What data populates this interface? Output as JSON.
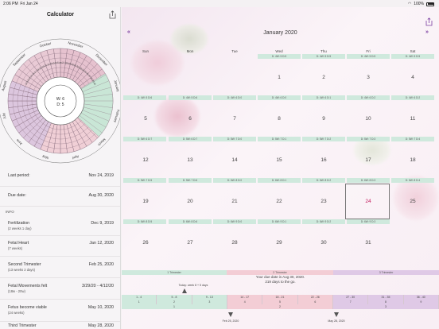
{
  "status": {
    "time": "2:06 PM",
    "date": "Fri Jan 24",
    "battery": "100%"
  },
  "left_title": "Calculator",
  "wheel": {
    "center": {
      "line1": "W: 6",
      "line2": "D: 5"
    },
    "months": [
      "September",
      "October",
      "November",
      "December",
      "January",
      "February",
      "March",
      "April",
      "May",
      "June",
      "July",
      "August"
    ],
    "ring_numbers": [
      "12",
      "13",
      "14",
      "15",
      "16",
      "17",
      "18",
      "19",
      "20",
      "21",
      "22",
      "23",
      "24",
      "25",
      "26",
      "27",
      "28",
      "29",
      "30",
      "31",
      "32",
      "33",
      "34",
      "35",
      "36",
      "37",
      "38",
      "39",
      "40"
    ]
  },
  "summary": [
    {
      "key": "Last period:",
      "value": "Nov 24, 2019"
    },
    {
      "key": "Due date:",
      "value": "Aug 30, 2020"
    }
  ],
  "info_header": "INFO",
  "info": [
    {
      "key": "Fertilization",
      "sub": "(2 weeks 1 day)",
      "value": "Dec 9, 2019"
    },
    {
      "key": "Fetal Heart",
      "sub": "(7 weeks)",
      "value": "Jan 12, 2020"
    },
    {
      "key": "Second Trimester",
      "sub": "(13 weeks 2 days)",
      "value": "Feb 25, 2020"
    },
    {
      "key": "Fetal Movements felt",
      "sub": "(18w - 20w)",
      "value": "3/29/20 - 4/12/20"
    },
    {
      "key": "Fetus become viable",
      "sub": "(24 weeks)",
      "value": "May 10, 2020"
    },
    {
      "key": "Third Trimester",
      "sub": "",
      "value": "May 28, 2020"
    }
  ],
  "calendar": {
    "title": "January 2020",
    "prev_icon": "double-chevron-left-icon",
    "next_icon": "double-chevron-right-icon",
    "days": [
      "Sun",
      "Mon",
      "Tue",
      "Wed",
      "Thu",
      "Fri",
      "Sat"
    ],
    "weeks": [
      [
        "",
        "",
        "",
        "1",
        "2",
        "3",
        "4"
      ],
      [
        "5",
        "6",
        "7",
        "8",
        "9",
        "10",
        "11"
      ],
      [
        "12",
        "13",
        "14",
        "15",
        "16",
        "17",
        "18"
      ],
      [
        "19",
        "20",
        "21",
        "22",
        "23",
        "24",
        "25"
      ],
      [
        "26",
        "27",
        "28",
        "29",
        "30",
        "31",
        ""
      ]
    ],
    "band_labels": [
      [
        "",
        "",
        "",
        "D: 4W: 5 D:5",
        "D: 4W: 5 D:5",
        "D: 4W: 5 D:5",
        "D: 4W: 5 D:5"
      ],
      [
        "D: 4W: 5 D:6",
        "D: 4W: 5 D:6",
        "D: 4W: 6 D:0",
        "D: 4W: 6 D:0",
        "D: 4W: 6 D:1",
        "D: 4W: 6 D:2",
        "D: 4W: 6 D:2"
      ],
      [
        "D: 5W: 6 D:7",
        "D: 5W: 6 D:7",
        "D: 5W: 7 D:0",
        "D: 5W: 7 D:1",
        "D: 5W: 7 D:2",
        "D: 5W: 7 D:3",
        "D: 5W: 7 D:4"
      ],
      [
        "D: 5W: 7 D:5",
        "D: 5W: 7 D:6",
        "D: 6W: 8 D:0",
        "D: 6W: 8 D:1",
        "D: 6W: 8 D:2",
        "D: 6W: 8 D:3",
        "D: 6W: 8 D:4"
      ],
      [
        "D: 6W: 8 D:5",
        "D: 6W: 8 D:6",
        "D: 6W: 9 D:0",
        "D: 6W: 9 D:1",
        "D: 6W: 9 D:2",
        "D: 6W: 9 D:3",
        ""
      ]
    ],
    "today": "24"
  },
  "trimesters": [
    "1 Trimester",
    "2 Trimester",
    "3 Trimester"
  ],
  "due_text": {
    "line1": "Your due date is Aug 30, 2020.",
    "line2": "219 days to the go."
  },
  "timeline": {
    "today_label": "Today: week 8 + 5 days",
    "week_ranges": [
      "1 - 4",
      "5 - 8",
      "9 - 13",
      "14 - 17",
      "18 - 21",
      "22 - 26",
      "27 - 30",
      "31 - 35",
      "36 - 40"
    ],
    "months_row": [
      "1",
      "2",
      "3",
      "4",
      "5",
      "6",
      "7",
      "8",
      "9"
    ],
    "trimester_row": [
      "1",
      "2",
      "3"
    ],
    "markers": [
      "Feb 25, 2020",
      "May 28, 2020"
    ]
  },
  "colors": {
    "accent": "#7a3da0",
    "green": "#bfe3d2",
    "pink": "#f0c7cf",
    "purple": "#d9c1e0",
    "today": "#c2185b"
  }
}
